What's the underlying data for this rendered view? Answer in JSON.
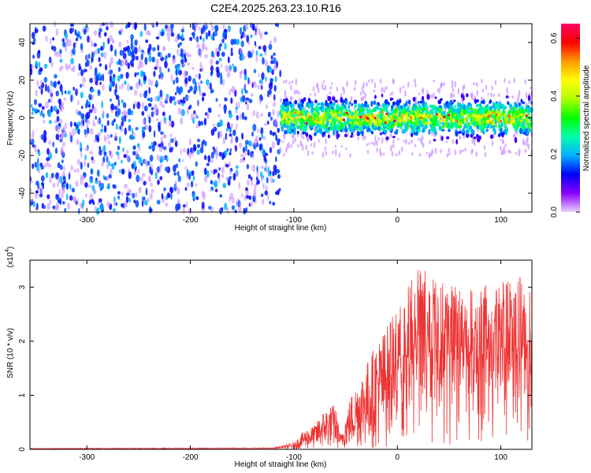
{
  "page": {
    "title": "C2E4.2025.263.23.10.R16"
  },
  "chart_data": [
    {
      "type": "heatmap",
      "title": "C2E4.2025.263.23.10.R16",
      "xlabel": "Height of straight line (km)",
      "ylabel": "Frequency (Hz)",
      "xlim": [
        -355,
        130
      ],
      "ylim": [
        -50,
        50
      ],
      "x_ticks": [
        -300,
        -200,
        -100,
        0,
        100
      ],
      "y_ticks": [
        -40,
        -20,
        0,
        20,
        40
      ],
      "grid": false,
      "regions": [
        {
          "x_range": [
            -355,
            -113
          ],
          "y_range": [
            -50,
            50
          ],
          "description_value": 0.1
        },
        {
          "x_range": [
            -113,
            130
          ],
          "y_range": [
            -10,
            10
          ],
          "peak_center_hz": 0,
          "peak_value": 0.65
        }
      ],
      "colorbar": {
        "label": "Normalized spectral amplitude",
        "range": [
          0.0,
          0.65
        ],
        "ticks": [
          "0.0",
          "0.2",
          "0.4",
          "0.6"
        ],
        "colors": [
          "#e7d2ff",
          "#8a00ff",
          "#0000ff",
          "#00b0ff",
          "#00ffb0",
          "#00ff00",
          "#b0ff00",
          "#ffff00",
          "#ff9a00",
          "#ff0000",
          "#ff0060"
        ]
      }
    },
    {
      "type": "line",
      "xlabel": "Height of straight line (km)",
      "ylabel": "SNR (10 * v/v)",
      "y_multiplier_label": "(x10",
      "y_multiplier_exp": "4",
      "y_multiplier_close": ")",
      "xlim": [
        -355,
        130
      ],
      "ylim": [
        0,
        3.5
      ],
      "x_ticks": [
        -300,
        -200,
        -100,
        0,
        100
      ],
      "y_ticks": [
        0,
        1,
        2,
        3
      ],
      "grid": false,
      "series_color": "#ee3333",
      "envelope": [
        {
          "x": -355,
          "y": 0.02
        },
        {
          "x": -120,
          "y": 0.03
        },
        {
          "x": -100,
          "y": 0.12
        },
        {
          "x": -90,
          "y": 0.35
        },
        {
          "x": -80,
          "y": 0.45
        },
        {
          "x": -70,
          "y": 0.75
        },
        {
          "x": -60,
          "y": 0.85
        },
        {
          "x": -55,
          "y": 0.25
        },
        {
          "x": -45,
          "y": 1.0
        },
        {
          "x": -30,
          "y": 1.6
        },
        {
          "x": -20,
          "y": 2.0
        },
        {
          "x": -10,
          "y": 2.3
        },
        {
          "x": 0,
          "y": 2.6
        },
        {
          "x": 10,
          "y": 3.1
        },
        {
          "x": 20,
          "y": 3.4
        },
        {
          "x": 30,
          "y": 3.3
        },
        {
          "x": 50,
          "y": 3.2
        },
        {
          "x": 70,
          "y": 3.0
        },
        {
          "x": 100,
          "y": 3.1
        },
        {
          "x": 120,
          "y": 3.2
        },
        {
          "x": 130,
          "y": 3.2
        }
      ]
    }
  ]
}
